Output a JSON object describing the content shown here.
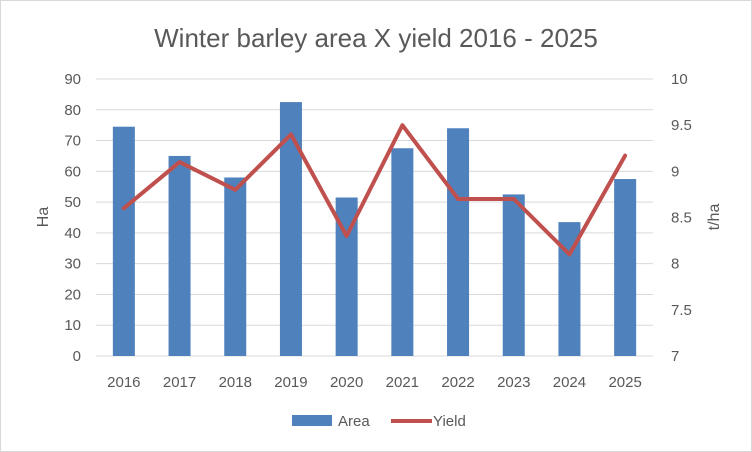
{
  "chart_data": {
    "type": "bar",
    "title": "Winter barley area X yield 2016 - 2025",
    "categories": [
      "2016",
      "2017",
      "2018",
      "2019",
      "2020",
      "2021",
      "2022",
      "2023",
      "2024",
      "2025"
    ],
    "series": [
      {
        "name": "Area",
        "type": "bar",
        "axis": "left",
        "color": "#4f81bd",
        "values": [
          74.5,
          65,
          58,
          82.5,
          51.5,
          67.5,
          74,
          52.5,
          43.5,
          57.5
        ]
      },
      {
        "name": "Yield",
        "type": "line",
        "axis": "right",
        "color": "#c0504d",
        "values": [
          8.6,
          9.1,
          8.8,
          9.4,
          8.3,
          9.5,
          8.7,
          8.7,
          8.1,
          9.17
        ]
      }
    ],
    "ylabel": "Ha",
    "y2label": "t/ha",
    "ylim": [
      0,
      90
    ],
    "y2lim": [
      7,
      10
    ],
    "yticks": [
      "0",
      "10",
      "20",
      "30",
      "40",
      "50",
      "60",
      "70",
      "80",
      "90"
    ],
    "y2ticks": [
      "7",
      "7.5",
      "8",
      "8.5",
      "9",
      "9.5",
      "10"
    ],
    "grid": true,
    "legend": "bottom"
  }
}
